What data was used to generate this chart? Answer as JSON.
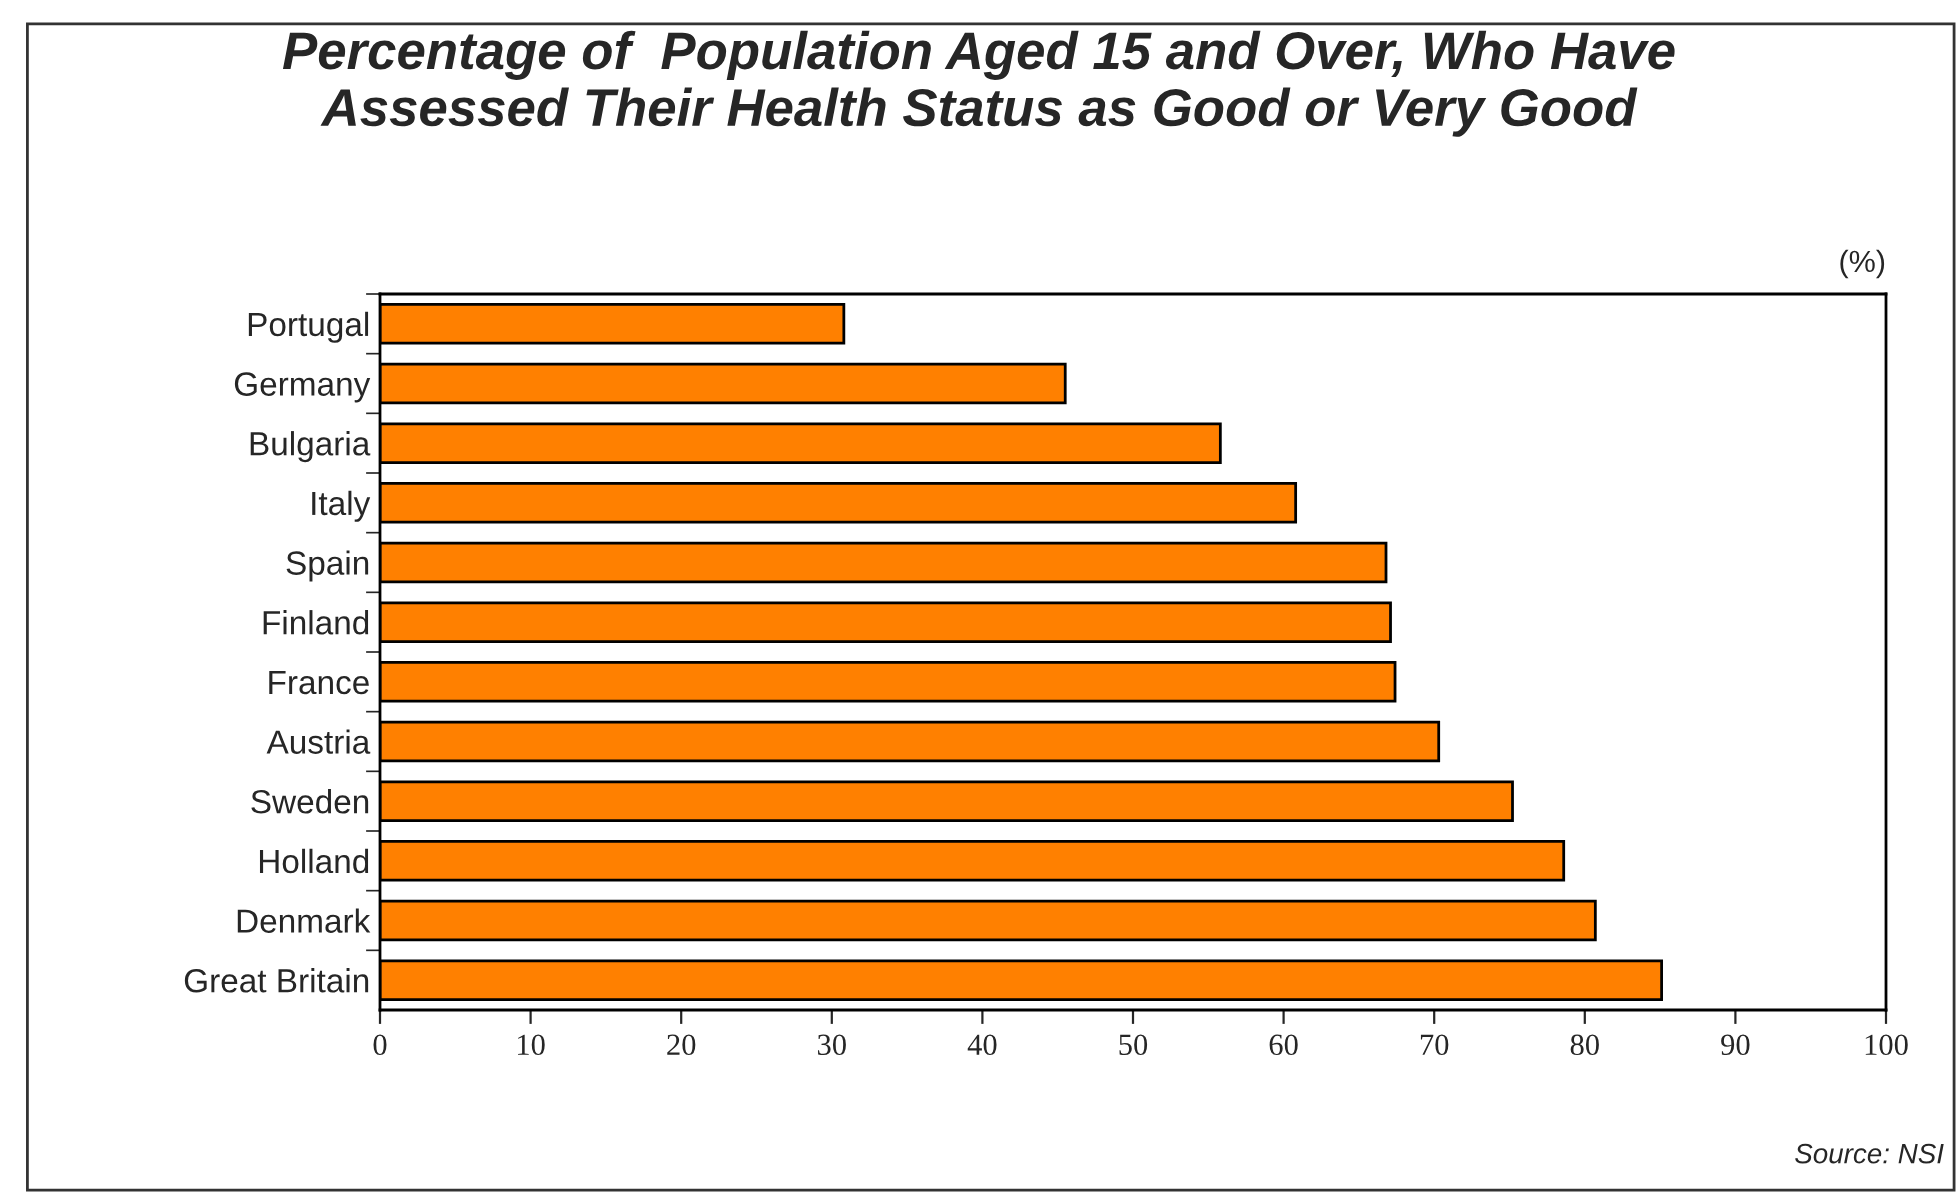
{
  "chart_data": {
    "type": "bar",
    "orientation": "horizontal",
    "title": "Percentage of  Population Aged 15 and Over, Who Have\nAssessed Their Health Status as Good or Very Good",
    "xlabel": "(%)",
    "categories": [
      "Portugal",
      "Germany",
      "Bulgaria",
      "Italy",
      "Spain",
      "Finland",
      "France",
      "Austria",
      "Sweden",
      "Holland",
      "Denmark",
      "Great Britain"
    ],
    "values": [
      30.8,
      45.5,
      55.8,
      60.8,
      66.8,
      67.1,
      67.4,
      70.3,
      75.2,
      78.6,
      80.7,
      85.1
    ],
    "color": "#ff8000",
    "xlim": [
      0,
      100
    ],
    "xticks": [
      0,
      10,
      20,
      30,
      40,
      50,
      60,
      70,
      80,
      90,
      100
    ],
    "grid": false,
    "legend": false,
    "annotations": [
      "Source: NSI"
    ]
  }
}
